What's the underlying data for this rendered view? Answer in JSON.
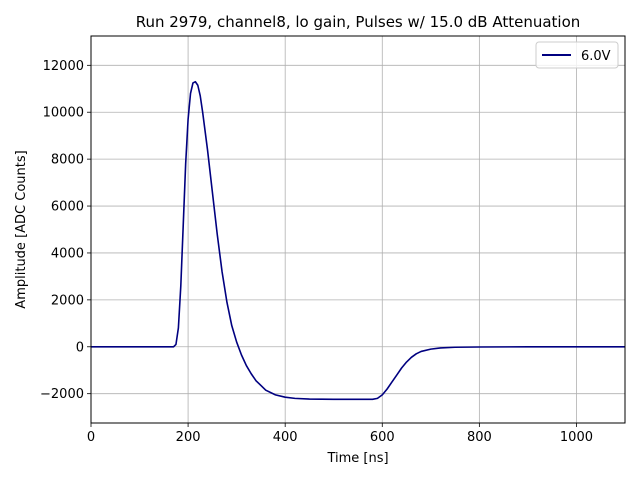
{
  "chart_data": {
    "type": "line",
    "title": "Run 2979, channel8, lo gain, Pulses w/ 15.0 dB Attenuation",
    "xlabel": "Time [ns]",
    "ylabel": "Amplitude [ADC Counts]",
    "xlim": [
      0,
      1100
    ],
    "ylim": [
      -3250,
      13250
    ],
    "xticks": [
      0,
      200,
      400,
      600,
      800,
      1000
    ],
    "yticks": [
      -2000,
      0,
      2000,
      4000,
      6000,
      8000,
      10000,
      12000
    ],
    "xtick_labels": [
      "0",
      "200",
      "400",
      "600",
      "800",
      "1000"
    ],
    "ytick_labels": [
      "−2000",
      "0",
      "2000",
      "4000",
      "6000",
      "8000",
      "10000",
      "12000"
    ],
    "grid": true,
    "legend_position": "top-right",
    "series": [
      {
        "name": "6.0V",
        "color": "#000080",
        "x": [
          0,
          100,
          170,
          175,
          180,
          185,
          190,
          195,
          200,
          205,
          210,
          215,
          220,
          225,
          230,
          240,
          250,
          260,
          270,
          280,
          290,
          300,
          310,
          320,
          330,
          340,
          350,
          360,
          380,
          400,
          420,
          450,
          500,
          550,
          580,
          590,
          600,
          610,
          620,
          630,
          640,
          650,
          660,
          670,
          680,
          700,
          720,
          750,
          800,
          900,
          1000,
          1100
        ],
        "y": [
          0,
          0,
          0,
          100,
          800,
          2600,
          5200,
          7800,
          9700,
          10800,
          11250,
          11300,
          11150,
          10700,
          10000,
          8400,
          6600,
          4800,
          3200,
          1900,
          900,
          200,
          -350,
          -800,
          -1150,
          -1450,
          -1650,
          -1850,
          -2050,
          -2150,
          -2200,
          -2230,
          -2240,
          -2240,
          -2240,
          -2200,
          -2050,
          -1800,
          -1500,
          -1200,
          -900,
          -650,
          -450,
          -300,
          -200,
          -100,
          -50,
          -20,
          -10,
          0,
          0,
          0
        ]
      }
    ]
  }
}
